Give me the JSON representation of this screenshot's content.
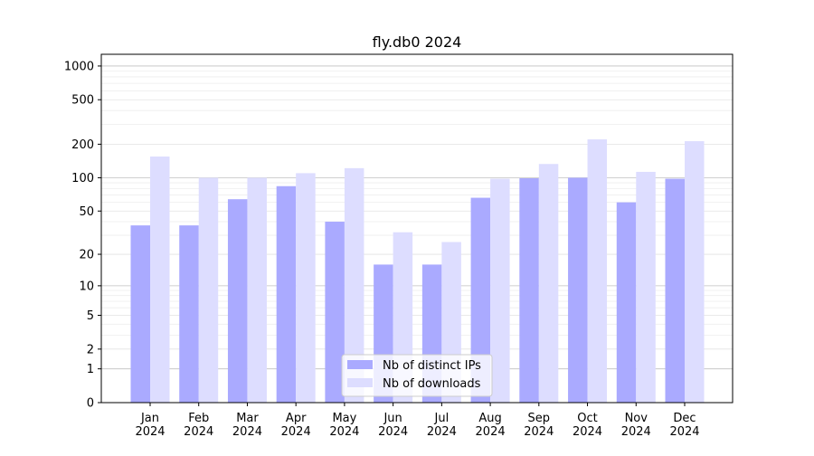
{
  "chart_data": {
    "type": "bar",
    "title": "fly.db0 2024",
    "xlabel": "",
    "ylabel": "",
    "yscale": "log(1+x)",
    "ylim": [
      0,
      1200
    ],
    "yticks": [
      0,
      1,
      2,
      5,
      10,
      20,
      50,
      100,
      200,
      500,
      1000
    ],
    "grid": true,
    "legend_placement": "lower-center",
    "categories": [
      "Jan\n2024",
      "Feb\n2024",
      "Mar\n2024",
      "Apr\n2024",
      "May\n2024",
      "Jun\n2024",
      "Jul\n2024",
      "Aug\n2024",
      "Sep\n2024",
      "Oct\n2024",
      "Nov\n2024",
      "Dec\n2024"
    ],
    "series": [
      {
        "name": "Nb of distinct IPs",
        "color": "#aaaaff",
        "values": [
          37,
          37,
          64,
          84,
          40,
          16,
          16,
          66,
          99,
          100,
          60,
          98
        ]
      },
      {
        "name": "Nb of downloads",
        "color": "#ddddff",
        "values": [
          155,
          100,
          100,
          110,
          122,
          32,
          26,
          98,
          133,
          221,
          113,
          213
        ]
      }
    ]
  }
}
